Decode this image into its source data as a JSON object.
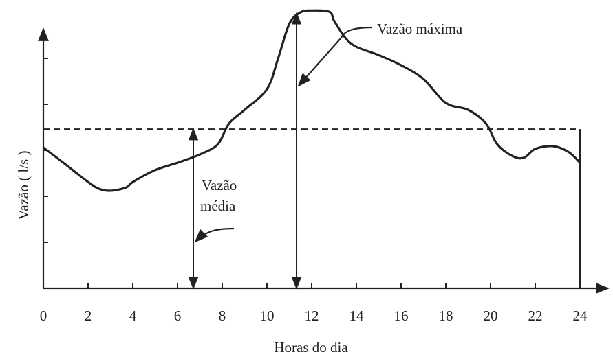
{
  "chart_data": {
    "type": "line",
    "x_label": "Horas do dia",
    "y_label": "Vazão ( l/s )",
    "x": [
      0,
      1,
      2,
      2.5,
      3,
      3.7,
      4,
      5,
      6,
      7,
      7.8,
      8.3,
      9,
      10,
      10.5,
      11,
      11.5,
      12,
      12.8,
      13,
      13.5,
      14,
      15,
      16,
      17,
      18,
      19,
      19.8,
      20.3,
      21,
      21.5,
      22,
      22.8,
      23.5,
      24
    ],
    "series": [
      {
        "color": "#222222",
        "values": [
          3.06,
          2.69,
          2.31,
          2.16,
          2.12,
          2.19,
          2.31,
          2.57,
          2.73,
          2.91,
          3.13,
          3.58,
          3.88,
          4.33,
          5.0,
          5.75,
          6.0,
          6.04,
          6.01,
          5.82,
          5.45,
          5.25,
          5.07,
          4.85,
          4.55,
          4.03,
          3.88,
          3.58,
          3.13,
          2.87,
          2.84,
          3.03,
          3.09,
          2.96,
          2.73
        ]
      }
    ],
    "mean_value": 3.46,
    "xlim": [
      0,
      24
    ],
    "xticks": [
      0,
      2,
      4,
      6,
      8,
      10,
      12,
      14,
      16,
      18,
      20,
      22,
      24
    ],
    "ylim": [
      0,
      6.2
    ],
    "yticks": [
      1,
      2,
      3,
      4,
      5
    ],
    "annotations": {
      "max": "Vazão máxima",
      "mean_line1": "Vazão",
      "mean_line2": "média"
    }
  }
}
